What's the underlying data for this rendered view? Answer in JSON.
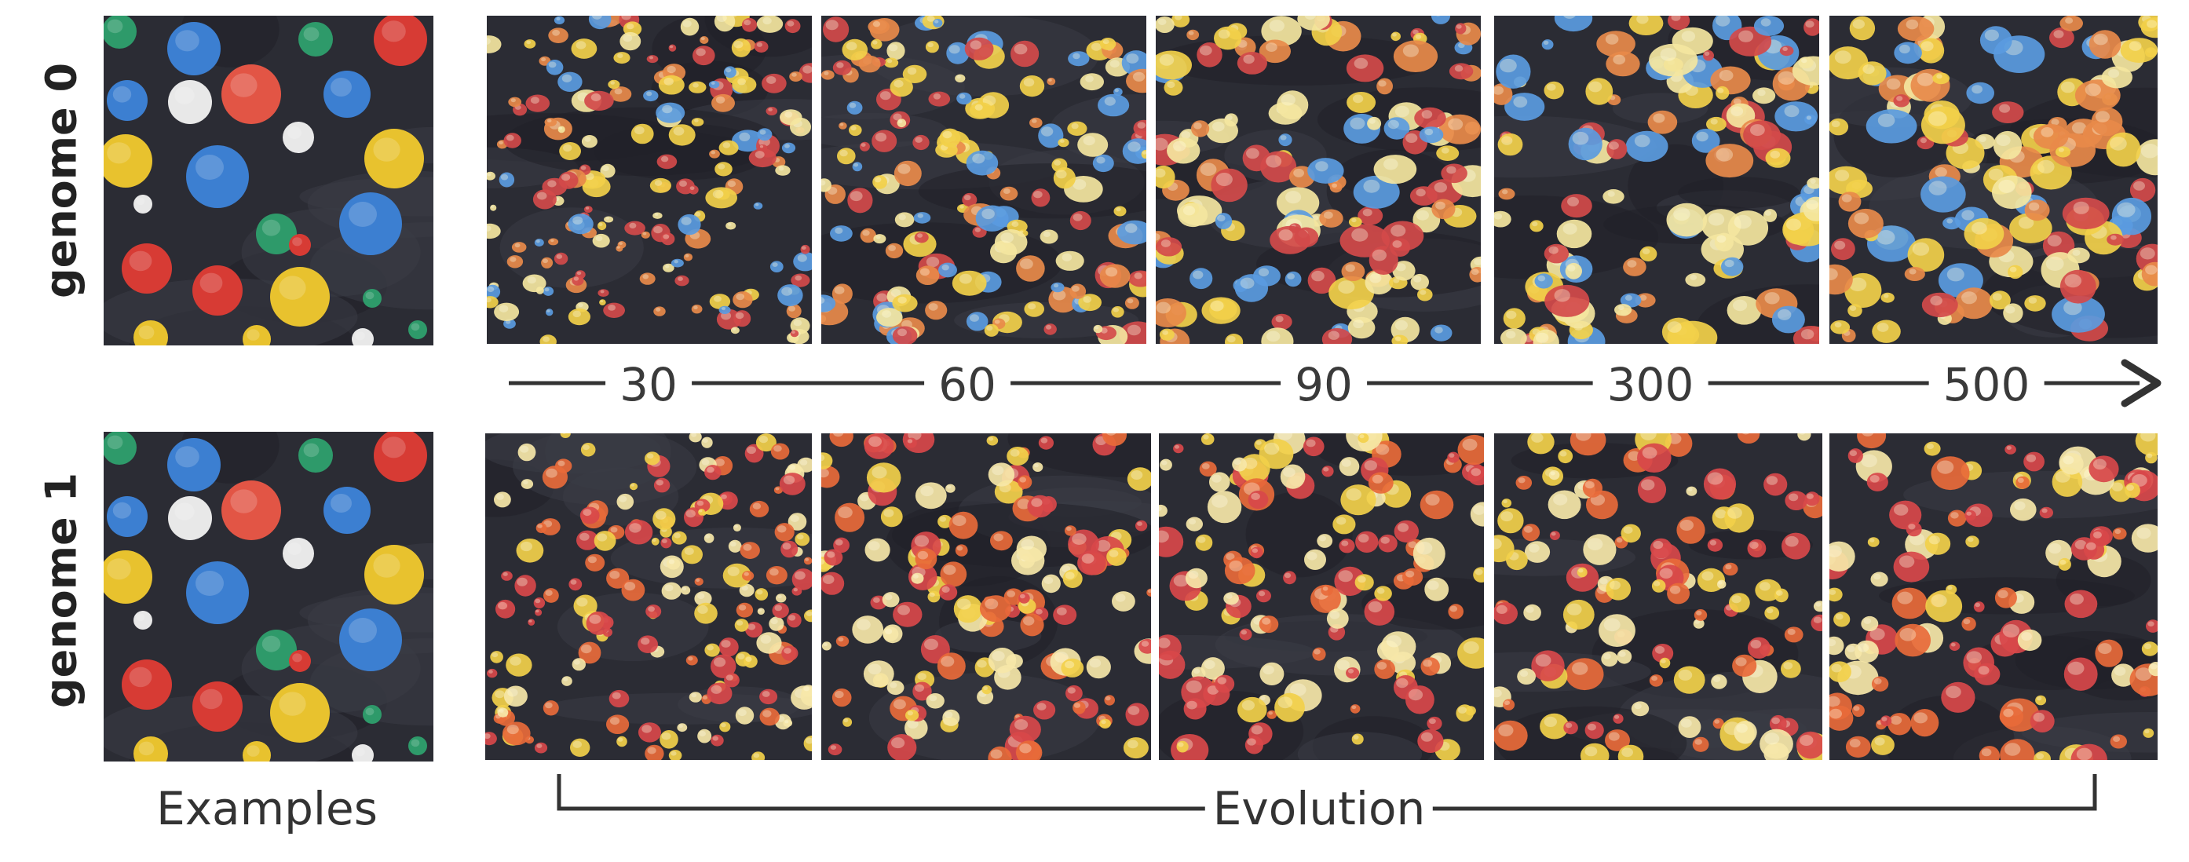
{
  "rows": [
    {
      "label": "genome 0"
    },
    {
      "label": "genome 1"
    }
  ],
  "timeline": {
    "steps": [
      "30",
      "60",
      "90",
      "300",
      "500"
    ]
  },
  "captions": {
    "examples": "Examples",
    "evolution": "Evolution"
  },
  "colors": {
    "background": "#2b2c34",
    "dot_palette_example": [
      "#2e9a6a",
      "#3c7fd1",
      "#e8e8e8",
      "#e25545",
      "#e8c22e",
      "#d73b34"
    ],
    "dot_palette_genome0": [
      "#f2d04a",
      "#5a9be0",
      "#e88a4a",
      "#f4e6a0",
      "#d24a4a"
    ],
    "dot_palette_genome1": [
      "#f2d04a",
      "#e86a3a",
      "#f6e7a8",
      "#d8484a"
    ],
    "axis": "#333333"
  }
}
